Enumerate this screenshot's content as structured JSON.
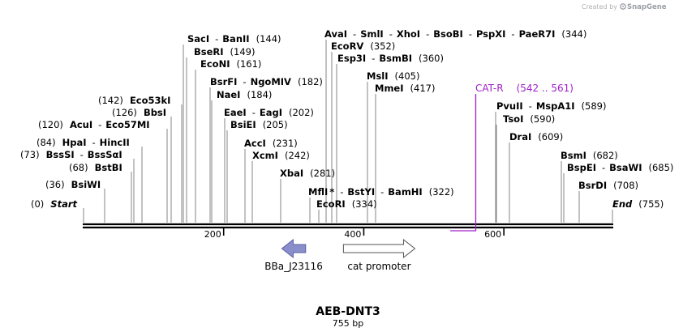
{
  "credit": {
    "prefix": "Created by",
    "brand": "SnapGene"
  },
  "sequence": {
    "name": "AEB-DNT3",
    "length_label": "755 bp",
    "length": 755
  },
  "ticks": [
    {
      "bp": 200,
      "label": "200"
    },
    {
      "bp": 400,
      "label": "400"
    },
    {
      "bp": 600,
      "label": "600"
    }
  ],
  "sites": [
    {
      "parts": [
        {
          "t": "(0)",
          "k": "pos"
        },
        {
          "t": "Start",
          "k": "end"
        }
      ],
      "bp": 0
    },
    {
      "parts": [
        {
          "t": "(36)",
          "k": "pos"
        },
        {
          "t": "BsiWI",
          "k": "enz"
        }
      ],
      "bp": 36
    },
    {
      "parts": [
        {
          "t": "(68)",
          "k": "pos"
        },
        {
          "t": "BstBI",
          "k": "enz"
        }
      ],
      "bp": 68
    },
    {
      "parts": [
        {
          "t": "(73)",
          "k": "pos"
        },
        {
          "t": "BssSI",
          "k": "enz"
        },
        {
          "t": "-",
          "k": "sep"
        },
        {
          "t": "BssSαI",
          "k": "enz"
        }
      ],
      "bp": 73
    },
    {
      "parts": [
        {
          "t": "(84)",
          "k": "pos"
        },
        {
          "t": "HpaI",
          "k": "enz"
        },
        {
          "t": "-",
          "k": "sep"
        },
        {
          "t": "HincII",
          "k": "enz"
        }
      ],
      "bp": 84
    },
    {
      "parts": [
        {
          "t": "(120)",
          "k": "pos"
        },
        {
          "t": "AcuI",
          "k": "enz"
        },
        {
          "t": "-",
          "k": "sep"
        },
        {
          "t": "Eco57MI",
          "k": "enz"
        }
      ],
      "bp": 120
    },
    {
      "parts": [
        {
          "t": "(126)",
          "k": "pos"
        },
        {
          "t": "BbsI",
          "k": "enz"
        }
      ],
      "bp": 126
    },
    {
      "parts": [
        {
          "t": "(142)",
          "k": "pos"
        },
        {
          "t": "Eco53kI",
          "k": "enz"
        }
      ],
      "bp": 142
    },
    {
      "parts": [
        {
          "t": "SacI",
          "k": "enz"
        },
        {
          "t": "-",
          "k": "sep"
        },
        {
          "t": "BanII",
          "k": "enz"
        },
        {
          "t": "(144)",
          "k": "pos"
        }
      ],
      "bp": 144
    },
    {
      "parts": [
        {
          "t": "BseRI",
          "k": "enz"
        },
        {
          "t": "(149)",
          "k": "pos"
        }
      ],
      "bp": 149
    },
    {
      "parts": [
        {
          "t": "EcoNI",
          "k": "enz"
        },
        {
          "t": "(161)",
          "k": "pos"
        }
      ],
      "bp": 161
    },
    {
      "parts": [
        {
          "t": "BsrFI",
          "k": "enz"
        },
        {
          "t": "-",
          "k": "sep"
        },
        {
          "t": "NgoMIV",
          "k": "enz"
        },
        {
          "t": "(182)",
          "k": "pos"
        }
      ],
      "bp": 182
    },
    {
      "parts": [
        {
          "t": "NaeI",
          "k": "enz"
        },
        {
          "t": "(184)",
          "k": "pos"
        }
      ],
      "bp": 184
    },
    {
      "parts": [
        {
          "t": "EaeI",
          "k": "enz"
        },
        {
          "t": "-",
          "k": "sep"
        },
        {
          "t": "EagI",
          "k": "enz"
        },
        {
          "t": "(202)",
          "k": "pos"
        }
      ],
      "bp": 202
    },
    {
      "parts": [
        {
          "t": "BsiEI",
          "k": "enz"
        },
        {
          "t": "(205)",
          "k": "pos"
        }
      ],
      "bp": 205
    },
    {
      "parts": [
        {
          "t": "AccI",
          "k": "enz"
        },
        {
          "t": "(231)",
          "k": "pos"
        }
      ],
      "bp": 231
    },
    {
      "parts": [
        {
          "t": "XcmI",
          "k": "enz"
        },
        {
          "t": "(242)",
          "k": "pos"
        }
      ],
      "bp": 242
    },
    {
      "parts": [
        {
          "t": "XbaI",
          "k": "enz"
        },
        {
          "t": "(281)",
          "k": "pos"
        }
      ],
      "bp": 281
    },
    {
      "parts": [
        {
          "t": "MflI",
          "k": "enz"
        },
        {
          "t": "*",
          "k": "enz"
        },
        {
          "t": "-",
          "k": "sep"
        },
        {
          "t": "BstYI",
          "k": "enz"
        },
        {
          "t": "-",
          "k": "sep"
        },
        {
          "t": "BamHI",
          "k": "enz"
        },
        {
          "t": "(322)",
          "k": "pos"
        }
      ],
      "bp": 322
    },
    {
      "parts": [
        {
          "t": "EcoRI",
          "k": "enz"
        },
        {
          "t": "(334)",
          "k": "pos"
        }
      ],
      "bp": 334
    },
    {
      "parts": [
        {
          "t": "AvaI",
          "k": "enz"
        },
        {
          "t": "-",
          "k": "sep"
        },
        {
          "t": "SmlI",
          "k": "enz"
        },
        {
          "t": "-",
          "k": "sep"
        },
        {
          "t": "XhoI",
          "k": "enz"
        },
        {
          "t": "-",
          "k": "sep"
        },
        {
          "t": "BsoBI",
          "k": "enz"
        },
        {
          "t": "-",
          "k": "sep"
        },
        {
          "t": "PspXI",
          "k": "enz"
        },
        {
          "t": "-",
          "k": "sep"
        },
        {
          "t": "PaeR7I",
          "k": "enz"
        },
        {
          "t": "(344)",
          "k": "pos"
        }
      ],
      "bp": 344
    },
    {
      "parts": [
        {
          "t": "EcoRV",
          "k": "enz"
        },
        {
          "t": "(352)",
          "k": "pos"
        }
      ],
      "bp": 352
    },
    {
      "parts": [
        {
          "t": "Esp3I",
          "k": "enz"
        },
        {
          "t": "-",
          "k": "sep"
        },
        {
          "t": "BsmBI",
          "k": "enz"
        },
        {
          "t": "(360)",
          "k": "pos"
        }
      ],
      "bp": 360
    },
    {
      "parts": [
        {
          "t": "MslI",
          "k": "enz"
        },
        {
          "t": "(405)",
          "k": "pos"
        }
      ],
      "bp": 405
    },
    {
      "parts": [
        {
          "t": "MmeI",
          "k": "enz"
        },
        {
          "t": "(417)",
          "k": "pos"
        }
      ],
      "bp": 417
    },
    {
      "parts": [
        {
          "t": "PvuII",
          "k": "enz"
        },
        {
          "t": "-",
          "k": "sep"
        },
        {
          "t": "MspA1I",
          "k": "enz"
        },
        {
          "t": "(589)",
          "k": "pos"
        }
      ],
      "bp": 589
    },
    {
      "parts": [
        {
          "t": "TsoI",
          "k": "enz"
        },
        {
          "t": "(590)",
          "k": "pos"
        }
      ],
      "bp": 590
    },
    {
      "parts": [
        {
          "t": "DraI",
          "k": "enz"
        },
        {
          "t": "(609)",
          "k": "pos"
        }
      ],
      "bp": 609
    },
    {
      "parts": [
        {
          "t": "BsmI",
          "k": "enz"
        },
        {
          "t": "(682)",
          "k": "pos"
        }
      ],
      "bp": 682
    },
    {
      "parts": [
        {
          "t": "BspEI",
          "k": "enz"
        },
        {
          "t": "-",
          "k": "sep"
        },
        {
          "t": "BsaWI",
          "k": "enz"
        },
        {
          "t": "(685)",
          "k": "pos"
        }
      ],
      "bp": 685
    },
    {
      "parts": [
        {
          "t": "BsrDI",
          "k": "enz"
        },
        {
          "t": "(708)",
          "k": "pos"
        }
      ],
      "bp": 708
    },
    {
      "parts": [
        {
          "t": "End",
          "k": "end"
        },
        {
          "t": "(755)",
          "k": "pos"
        }
      ],
      "bp": 755
    }
  ],
  "primer": {
    "name": "CAT-R",
    "range": "(542 .. 561)",
    "start": 542,
    "end": 561,
    "color": "#a020c8"
  },
  "features": [
    {
      "name": "BBa_J23116",
      "start": 283,
      "end": 317,
      "direction": "reverse",
      "fill": "#8a8fcc",
      "stroke": "#5a5fa0"
    },
    {
      "name": "cat promoter",
      "start": 371,
      "end": 473,
      "direction": "forward",
      "fill": "#ffffff",
      "stroke": "#555555"
    }
  ]
}
